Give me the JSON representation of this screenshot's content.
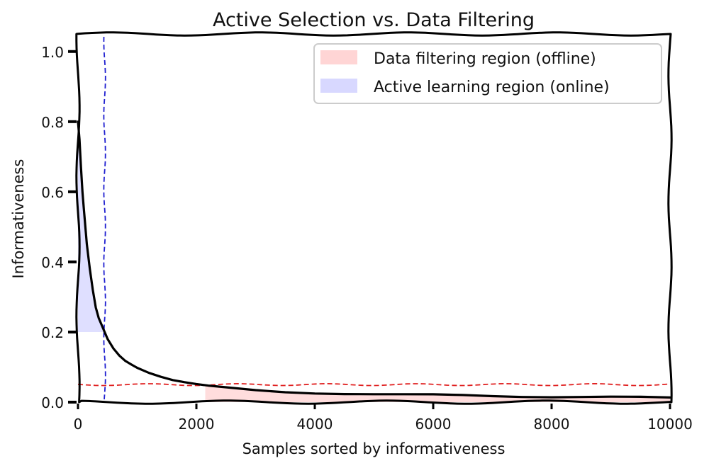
{
  "chart_data": {
    "type": "line",
    "title": "Active Selection vs. Data Filtering",
    "xlabel": "Samples sorted by informativeness",
    "ylabel": "Informativeness",
    "xlim": [
      0,
      10000
    ],
    "ylim": [
      0,
      1.05
    ],
    "x_ticks": [
      0,
      2000,
      4000,
      6000,
      8000,
      10000
    ],
    "x_tick_labels": [
      "0",
      "2000",
      "4000",
      "6000",
      "8000",
      "10000"
    ],
    "y_ticks": [
      0,
      0.2,
      0.4,
      0.6,
      0.8,
      1.0
    ],
    "y_tick_labels": [
      "0.0",
      "0.2",
      "0.4",
      "0.6",
      "0.8",
      "1.0"
    ],
    "grid": false,
    "legend_position": "top-right",
    "series": [
      {
        "name": "",
        "color": "#000000",
        "x": [
          0,
          25,
          50,
          75,
          100,
          150,
          200,
          250,
          300,
          350,
          400,
          450,
          500,
          600,
          700,
          800,
          900,
          1000,
          1200,
          1400,
          1600,
          1800,
          2000,
          2200,
          2500,
          3000,
          3500,
          4000,
          4500,
          5000,
          5500,
          6000,
          6500,
          7000,
          7500,
          8000,
          8500,
          9000,
          9500,
          10000
        ],
        "values": [
          0.8,
          0.75,
          0.67,
          0.6,
          0.55,
          0.45,
          0.38,
          0.32,
          0.27,
          0.24,
          0.22,
          0.2,
          0.18,
          0.155,
          0.135,
          0.12,
          0.11,
          0.1,
          0.085,
          0.073,
          0.063,
          0.056,
          0.05,
          0.045,
          0.04,
          0.033,
          0.029,
          0.027,
          0.025,
          0.023,
          0.021,
          0.02,
          0.019,
          0.018,
          0.017,
          0.016,
          0.015,
          0.014,
          0.013,
          0.012
        ]
      }
    ],
    "thresholds": {
      "active_x": 450,
      "active_x_color": "#1f1fd0",
      "filter_y": 0.05,
      "filter_y_color": "#e02020"
    },
    "regions": [
      {
        "name": "Data filtering region (offline)",
        "color": "#ffb3b3",
        "x_range": [
          2150,
          10000
        ],
        "ceiling": 0.05
      },
      {
        "name": "Active learning region (online)",
        "color": "#b8b8ff",
        "x_range": [
          0,
          450
        ],
        "floor": 0.2
      }
    ]
  }
}
